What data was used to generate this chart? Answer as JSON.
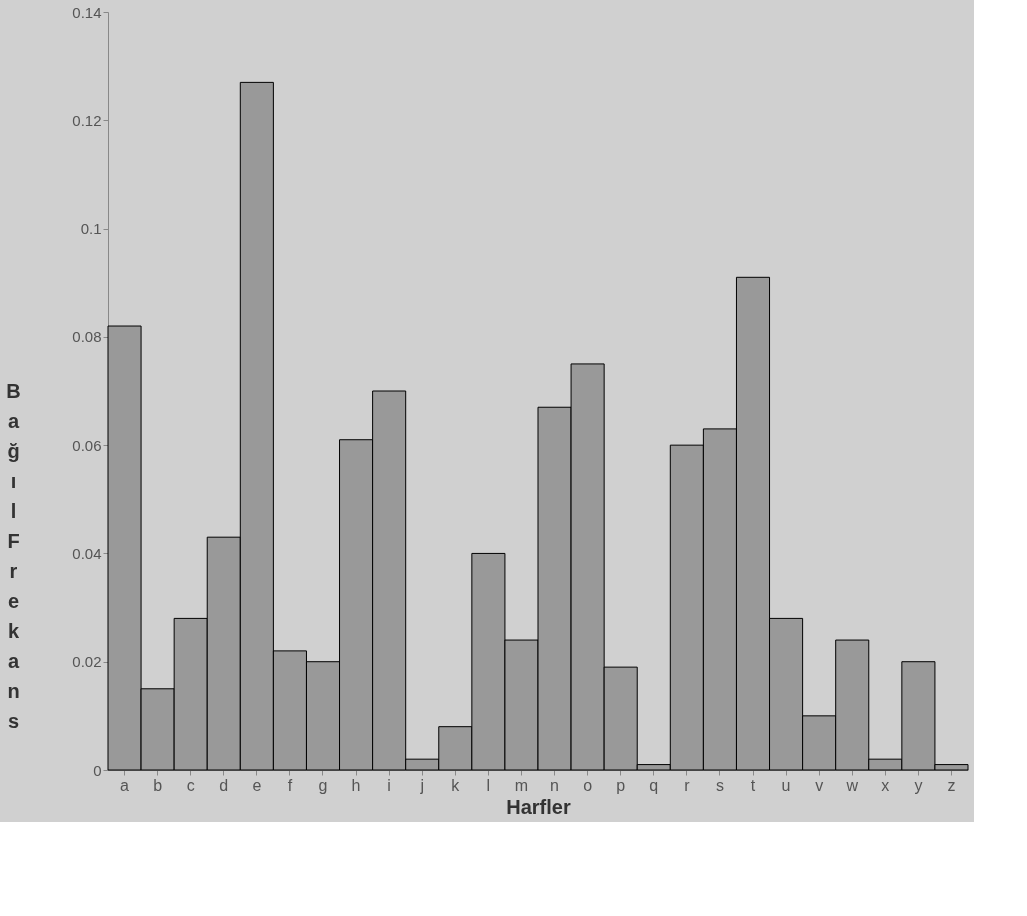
{
  "chart_data": {
    "type": "bar",
    "xlabel": "Harfler",
    "ylabel": "Bağıl Frekans",
    "categories": [
      "a",
      "b",
      "c",
      "d",
      "e",
      "f",
      "g",
      "h",
      "i",
      "j",
      "k",
      "l",
      "m",
      "n",
      "o",
      "p",
      "q",
      "r",
      "s",
      "t",
      "u",
      "v",
      "w",
      "x",
      "y",
      "z"
    ],
    "values": [
      0.082,
      0.015,
      0.028,
      0.043,
      0.127,
      0.022,
      0.02,
      0.061,
      0.07,
      0.002,
      0.008,
      0.04,
      0.024,
      0.067,
      0.075,
      0.019,
      0.001,
      0.06,
      0.063,
      0.091,
      0.028,
      0.01,
      0.024,
      0.002,
      0.02,
      0.001
    ],
    "color": "#999999",
    "ylim": [
      0,
      0.14
    ],
    "yticks": [
      0,
      0.02,
      0.04,
      0.06,
      0.08,
      0.1,
      0.12,
      0.14
    ],
    "grid": false
  }
}
